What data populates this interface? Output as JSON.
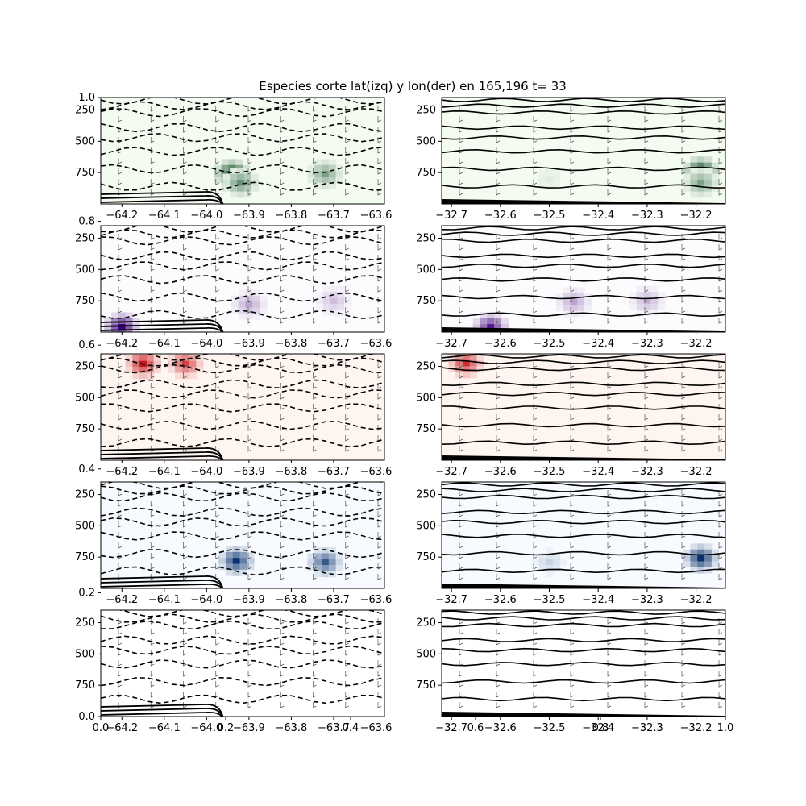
{
  "figure": {
    "title": "Especies corte lat(izq) y lon(der) en 165,196 t= 33"
  },
  "chart_data": {
    "type": "heatmap",
    "title": "Especies corte lat(izq) y lon(der) en 165,196 t= 33",
    "outer_axis": {
      "y_ticks": [
        "0.0",
        "0.2",
        "0.4",
        "0.6",
        "0.8",
        "1.0"
      ],
      "y_values": [
        0.0,
        0.2,
        0.4,
        0.6,
        0.8,
        1.0
      ],
      "x_ticks": [
        "0.0",
        "0.2",
        "0.4",
        "0.6",
        "0.8",
        "1.0"
      ],
      "x_values": [
        0.0,
        0.2,
        0.4,
        0.6,
        0.8,
        1.0
      ]
    },
    "left_x": {
      "ticks": [
        "−64.2",
        "−64.1",
        "−64.0",
        "−63.9",
        "−63.8",
        "−63.7",
        "−63.6"
      ],
      "values": [
        -64.2,
        -64.1,
        -64.0,
        -63.9,
        -63.8,
        -63.7,
        -63.6
      ],
      "range": [
        -64.25,
        -63.58
      ]
    },
    "right_x": {
      "ticks": [
        "−32.7",
        "−32.6",
        "−32.5",
        "−32.4",
        "−32.3",
        "−32.2"
      ],
      "values": [
        -32.7,
        -32.6,
        -32.5,
        -32.4,
        -32.3,
        -32.2
      ],
      "range": [
        -32.72,
        -32.14
      ]
    },
    "y_axis": {
      "ticks": [
        "250",
        "500",
        "750"
      ],
      "values": [
        250,
        500,
        750
      ],
      "range": [
        1000,
        150
      ],
      "inverted": true
    },
    "species": [
      {
        "cmap": "Greens",
        "low": "#f4fbf1",
        "high": "#00441b",
        "left_blobs": [
          {
            "x": -63.94,
            "p": 760,
            "v": 1.0
          },
          {
            "x": -63.92,
            "p": 830,
            "v": 0.6
          },
          {
            "x": -63.72,
            "p": 760,
            "v": 0.5
          }
        ],
        "right_blobs": [
          {
            "x": -32.19,
            "p": 740,
            "v": 1.0
          },
          {
            "x": -32.19,
            "p": 830,
            "v": 0.5
          },
          {
            "x": -32.5,
            "p": 800,
            "v": 0.08
          }
        ]
      },
      {
        "cmap": "Purples",
        "low": "#fcfbfd",
        "high": "#3f007d",
        "left_blobs": [
          {
            "x": -64.2,
            "p": 960,
            "v": 1.0
          },
          {
            "x": -63.9,
            "p": 780,
            "v": 0.35
          },
          {
            "x": -63.7,
            "p": 750,
            "v": 0.25
          }
        ],
        "right_blobs": [
          {
            "x": -32.62,
            "p": 960,
            "v": 0.9
          },
          {
            "x": -32.45,
            "p": 760,
            "v": 0.35
          },
          {
            "x": -32.3,
            "p": 750,
            "v": 0.3
          }
        ]
      },
      {
        "cmap": "Reds",
        "low": "#fff5f0",
        "high": "#c8161d",
        "left_blobs": [
          {
            "x": -64.15,
            "p": 230,
            "v": 1.0
          },
          {
            "x": -64.05,
            "p": 230,
            "v": 0.8
          }
        ],
        "right_blobs": [
          {
            "x": -32.67,
            "p": 225,
            "v": 0.9
          }
        ]
      },
      {
        "cmap": "Blues",
        "low": "#f7fbff",
        "high": "#08306b",
        "left_blobs": [
          {
            "x": -63.93,
            "p": 780,
            "v": 1.0
          },
          {
            "x": -63.72,
            "p": 790,
            "v": 0.8
          }
        ],
        "right_blobs": [
          {
            "x": -32.19,
            "p": 760,
            "v": 1.0
          },
          {
            "x": -32.5,
            "p": 790,
            "v": 0.2
          }
        ]
      },
      {
        "cmap": "none",
        "low": "#ffffff",
        "high": "#ffffff",
        "left_blobs": [],
        "right_blobs": []
      }
    ]
  }
}
